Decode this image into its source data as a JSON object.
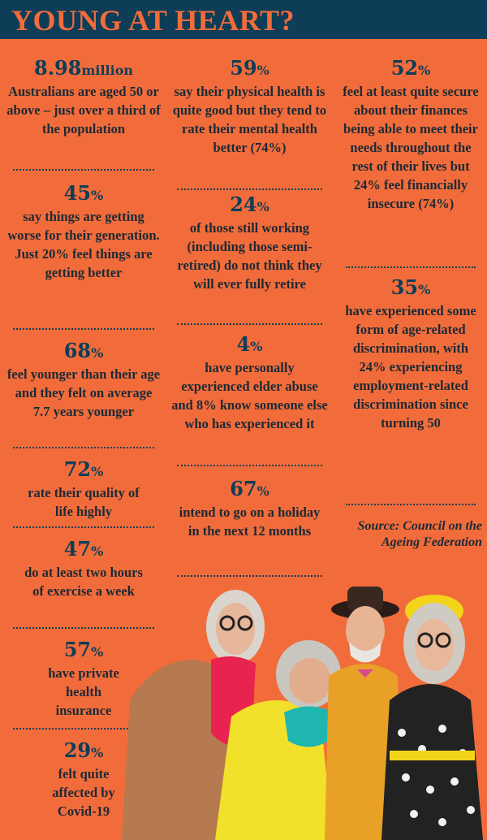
{
  "header": {
    "title": "YOUNG AT HEART?"
  },
  "stats": {
    "s1": {
      "value": "8.98",
      "unit": "million",
      "text": "Australians are aged 50 or above – just over a third of the population"
    },
    "s2": {
      "value": "45",
      "unit": "%",
      "text": "say things are getting worse for their generation. Just 20% feel things are getting better"
    },
    "s3": {
      "value": "68",
      "unit": "%",
      "text": "feel younger than their age and they felt on average 7.7 years younger"
    },
    "s4": {
      "value": "72",
      "unit": "%",
      "text": "rate their quality of life highly"
    },
    "s5": {
      "value": "47",
      "unit": "%",
      "text": "do at least two hours of exercise a week"
    },
    "s6": {
      "value": "57",
      "unit": "%",
      "text": "have private health insurance"
    },
    "s7": {
      "value": "29",
      "unit": "%",
      "text": "felt quite affected by Covid-19"
    },
    "s8": {
      "value": "59",
      "unit": "%",
      "text": "say their physical health is quite good but they tend to rate their mental health better (74%)"
    },
    "s9": {
      "value": "24",
      "unit": "%",
      "text": "of those still working (including those semi-retired) do not think they will ever fully retire"
    },
    "s10": {
      "value": "4",
      "unit": "%",
      "text": "have personally experienced elder abuse and 8% know someone else who has experienced it"
    },
    "s11": {
      "value": "67",
      "unit": "%",
      "text": "intend to go on a holiday in the next 12 months"
    },
    "s12": {
      "value": "52",
      "unit": "%",
      "text": "feel at least quite secure about their finances being able to meet their needs throughout the rest of their lives but 24% feel financially insecure (74%)"
    },
    "s13": {
      "value": "35",
      "unit": "%",
      "text": "have experienced some form of age-related discrimination, with 24% experiencing employment-related discrimination since turning 50"
    }
  },
  "source": {
    "text": "Source: Council on the Ageing Federation"
  },
  "colors": {
    "background": "#f26c3b",
    "header": "#0e3d57",
    "accent": "#0e3d57"
  }
}
